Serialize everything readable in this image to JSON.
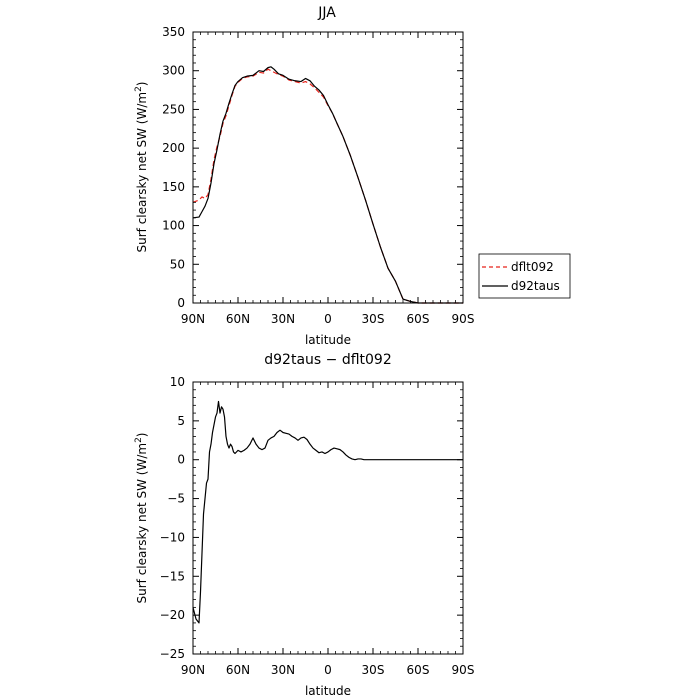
{
  "chart_data": [
    {
      "type": "line",
      "title": "JJA",
      "xlabel": "latitude",
      "ylabel": "Surf clearsky net SW (W/m",
      "ylabel_sup": "2",
      "ylabel_close": ")",
      "xlim": [
        90,
        -90
      ],
      "ylim": [
        0,
        350
      ],
      "xticks": [
        90,
        60,
        30,
        0,
        -30,
        -60,
        -90
      ],
      "xtick_labels": [
        "90N",
        "60N",
        "30N",
        "0",
        "30S",
        "60S",
        "90S"
      ],
      "yticks": [
        0,
        50,
        100,
        150,
        200,
        250,
        300,
        350
      ],
      "ytick_labels": [
        "0",
        "50",
        "100",
        "150",
        "200",
        "250",
        "300",
        "350"
      ],
      "legend_position": "right",
      "series": [
        {
          "name": "dflt092",
          "color": "#e8231b",
          "dash": "dashed",
          "x": [
            90,
            86,
            84,
            82,
            80,
            78,
            76,
            74,
            72,
            70,
            68,
            66,
            64,
            62,
            60,
            57,
            54,
            50,
            46,
            43,
            40,
            38,
            36,
            33,
            30,
            26,
            22,
            18,
            15,
            12,
            9,
            6,
            3,
            0,
            -3,
            -6,
            -10,
            -15,
            -20,
            -25,
            -30,
            -35,
            -40,
            -45,
            -50,
            -55,
            -60,
            -64,
            -67,
            -70,
            -73,
            -76,
            -80,
            -85,
            -90
          ],
          "y": [
            130,
            133,
            137,
            135,
            140,
            160,
            185,
            202,
            215,
            232,
            242,
            255,
            268,
            280,
            285,
            290,
            292,
            293,
            298,
            297,
            302,
            300,
            298,
            295,
            293,
            288,
            286,
            284,
            286,
            283,
            278,
            272,
            266,
            255,
            245,
            232,
            215,
            190,
            162,
            133,
            102,
            72,
            45,
            28,
            5,
            2,
            0,
            0,
            0,
            0,
            0,
            0,
            0,
            0,
            0
          ]
        },
        {
          "name": "d92taus",
          "color": "#000000",
          "dash": "solid",
          "x": [
            90,
            86,
            84,
            82,
            80,
            78,
            76,
            74,
            72,
            70,
            68,
            66,
            64,
            62,
            60,
            57,
            54,
            50,
            46,
            43,
            40,
            38,
            36,
            33,
            30,
            26,
            22,
            18,
            15,
            12,
            9,
            6,
            3,
            0,
            -3,
            -6,
            -10,
            -15,
            -20,
            -25,
            -30,
            -35,
            -40,
            -45,
            -50,
            -55,
            -60,
            -64,
            -67,
            -70,
            -73,
            -76,
            -80,
            -85,
            -90
          ],
          "y": [
            110,
            111,
            118,
            125,
            135,
            155,
            180,
            198,
            218,
            235,
            245,
            258,
            270,
            281,
            286,
            291,
            293,
            294,
            300,
            299,
            304,
            305,
            302,
            296,
            294,
            289,
            287,
            286,
            290,
            287,
            280,
            275,
            268,
            256,
            245,
            232,
            215,
            190,
            162,
            133,
            102,
            72,
            45,
            28,
            5,
            2,
            0,
            0,
            0,
            0,
            0,
            0,
            0,
            0,
            0
          ]
        }
      ]
    },
    {
      "type": "line",
      "title": "d92taus − dflt092",
      "xlabel": "latitude",
      "ylabel": "Surf clearsky net SW (W/m",
      "ylabel_sup": "2",
      "ylabel_close": ")",
      "xlim": [
        90,
        -90
      ],
      "ylim": [
        -25,
        10
      ],
      "xticks": [
        90,
        60,
        30,
        0,
        -30,
        -60,
        -90
      ],
      "xtick_labels": [
        "90N",
        "60N",
        "30N",
        "0",
        "30S",
        "60S",
        "90S"
      ],
      "yticks": [
        -25,
        -20,
        -15,
        -10,
        -5,
        0,
        5,
        10
      ],
      "ytick_labels": [
        "−25",
        "−20",
        "−15",
        "−10",
        "−5",
        "0",
        "5",
        "10"
      ],
      "series": [
        {
          "name": "",
          "color": "#000000",
          "dash": "solid",
          "x": [
            90,
            88,
            86,
            85,
            84,
            83,
            82,
            81,
            80,
            79,
            78,
            77,
            76,
            75,
            74,
            73,
            72,
            71,
            70,
            69,
            68,
            67,
            66,
            65,
            64,
            63,
            62,
            60,
            58,
            56,
            54,
            52,
            50,
            48,
            46,
            44,
            42,
            40,
            38,
            36,
            34,
            32,
            30,
            28,
            26,
            24,
            22,
            20,
            18,
            16,
            14,
            12,
            10,
            8,
            6,
            4,
            2,
            0,
            -2,
            -4,
            -6,
            -8,
            -10,
            -12,
            -14,
            -16,
            -18,
            -20,
            -22,
            -24,
            -26,
            -28,
            -30,
            -32,
            -34,
            -36,
            -38,
            -40,
            -42,
            -44,
            -46,
            -48,
            -50,
            -55,
            -60,
            -65,
            -70,
            -75,
            -80,
            -85,
            -90
          ],
          "y": [
            -19,
            -20.5,
            -21,
            -17,
            -12,
            -7,
            -5,
            -3,
            -2.5,
            1,
            2,
            3.5,
            4.5,
            5.5,
            6,
            7.5,
            6,
            6.8,
            6.5,
            5.5,
            3,
            2,
            1.5,
            2,
            1.7,
            1,
            0.8,
            1.2,
            1,
            1.2,
            1.5,
            2,
            2.8,
            2,
            1.5,
            1.3,
            1.5,
            2.5,
            2.8,
            3,
            3.5,
            3.8,
            3.5,
            3.4,
            3.3,
            3,
            2.8,
            2.5,
            2.8,
            2.9,
            2.6,
            2,
            1.5,
            1.2,
            0.9,
            1,
            0.8,
            1,
            1.3,
            1.5,
            1.4,
            1.3,
            1,
            0.6,
            0.3,
            0.1,
            0,
            0.1,
            0.1,
            0,
            0,
            0,
            0,
            0,
            0,
            0,
            0,
            0,
            0,
            0,
            0,
            0,
            0,
            0,
            0,
            0,
            0,
            0,
            0,
            0,
            0
          ]
        }
      ]
    }
  ]
}
